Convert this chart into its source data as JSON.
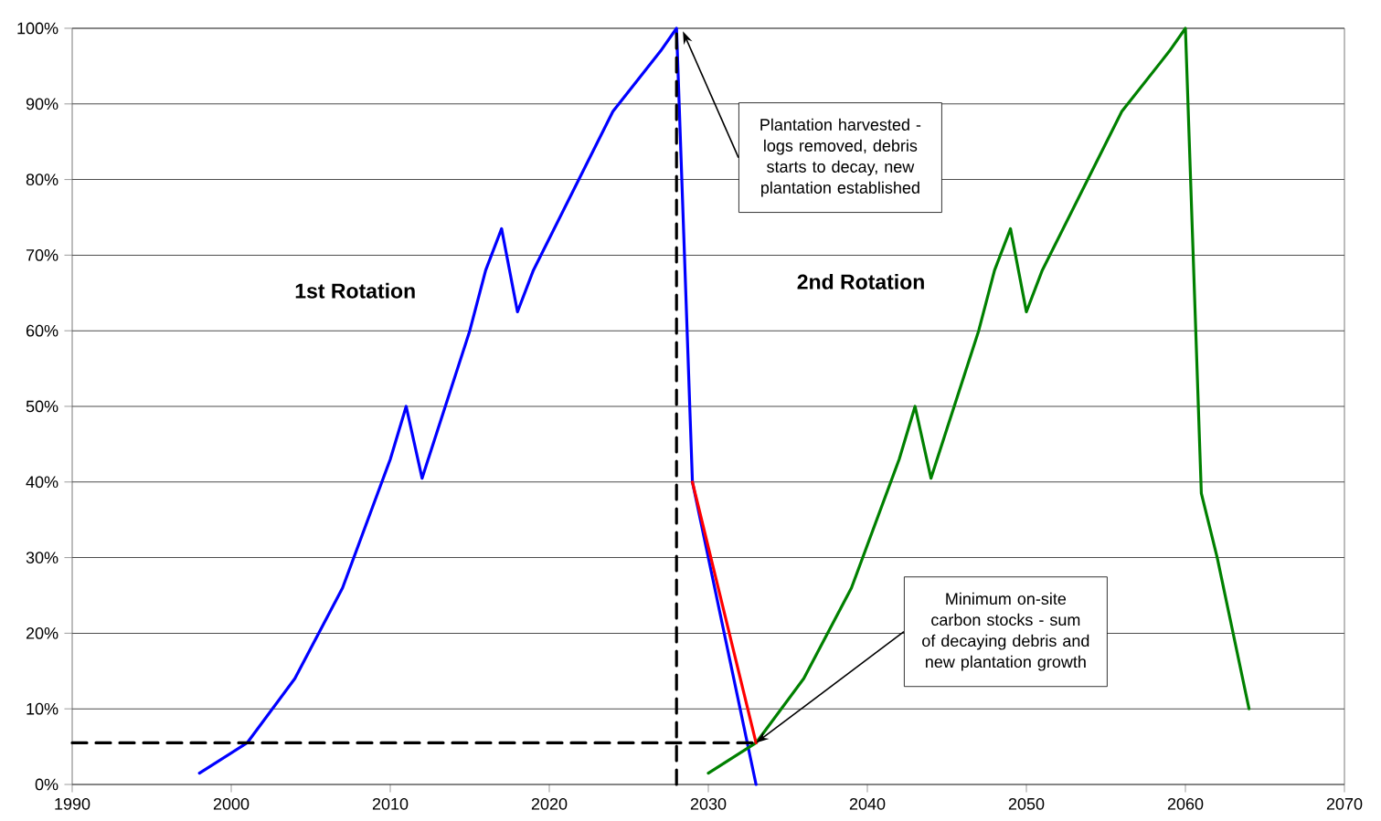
{
  "chart_data": {
    "type": "line",
    "xlim": [
      1990,
      2070
    ],
    "xticks": [
      1990,
      2000,
      2010,
      2020,
      2030,
      2040,
      2050,
      2060,
      2070
    ],
    "ylim": [
      0,
      100
    ],
    "yticks": [
      {
        "value": 0,
        "label": "0%"
      },
      {
        "value": 10,
        "label": "10%"
      },
      {
        "value": 20,
        "label": "20%"
      },
      {
        "value": 30,
        "label": "30%"
      },
      {
        "value": 40,
        "label": "40%"
      },
      {
        "value": 50,
        "label": "50%"
      },
      {
        "value": 60,
        "label": "60%"
      },
      {
        "value": 70,
        "label": "70%"
      },
      {
        "value": 80,
        "label": "80%"
      },
      {
        "value": 90,
        "label": "90%"
      },
      {
        "value": 100,
        "label": "100%"
      }
    ],
    "grid": "y",
    "marker": "none",
    "series": [
      {
        "color": "#0000ff",
        "x": [
          1998,
          2001,
          2004,
          2007,
          2010,
          2011,
          2012,
          2013,
          2015,
          2016,
          2017,
          2018,
          2019,
          2024,
          2027,
          2028,
          2029,
          2030,
          2033
        ],
        "values": [
          1.5,
          5.5,
          14,
          26,
          43,
          50,
          40.5,
          47,
          60,
          68,
          73.5,
          62.5,
          68,
          89,
          97,
          100,
          40,
          30,
          0
        ]
      },
      {
        "color": "#008000",
        "x": [
          2030,
          2033,
          2036,
          2039,
          2042,
          2043,
          2044,
          2045,
          2047,
          2048,
          2049,
          2050,
          2051,
          2056,
          2059,
          2060,
          2061,
          2062,
          2064
        ],
        "values": [
          1.5,
          5.5,
          14,
          26,
          43,
          50,
          40.5,
          47,
          60,
          68,
          73.5,
          62.5,
          68,
          89,
          97,
          100,
          38.5,
          30,
          10
        ]
      },
      {
        "color": "#ff0000",
        "x": [
          2029,
          2033
        ],
        "values": [
          40,
          5.5
        ]
      },
      {
        "color": "#000000",
        "line_style": "dashed",
        "x": [
          2028,
          2028
        ],
        "values": [
          0,
          100
        ]
      },
      {
        "color": "#000000",
        "line_style": "dashed",
        "x": [
          1990,
          2033
        ],
        "values": [
          5.5,
          5.5
        ]
      }
    ],
    "annotations": [
      "1st Rotation",
      "2nd Rotation",
      "Plantation harvested - logs removed, debris starts to decay, new plantation established",
      {
        "text": "Minimum on-site carbon stocks - sum of decaying debris and new plantation growth",
        "x": 2033,
        "y": 5.5
      }
    ]
  }
}
